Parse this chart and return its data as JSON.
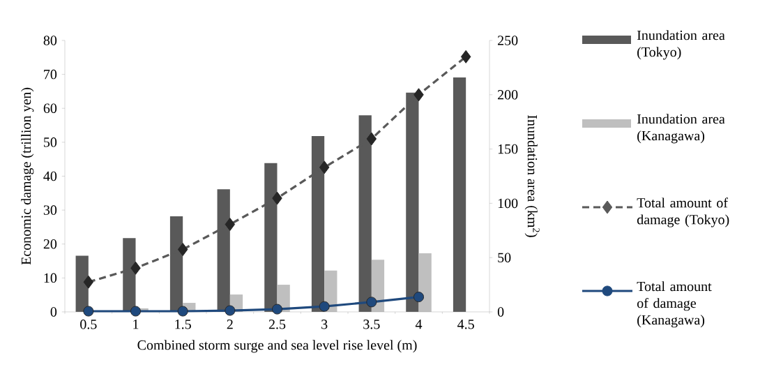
{
  "chart_data": {
    "type": "bar",
    "categories": [
      "0.5",
      "1",
      "1.5",
      "2",
      "2.5",
      "3",
      "3.5",
      "4",
      "4.5"
    ],
    "xlabel": "Combined storm surge and sea level rise level (m)",
    "ylabel": "Economic damage (trillion yen)",
    "y2label": "Inundation area (km$^{2}$)",
    "ylim": [
      0,
      80
    ],
    "yticks": [
      0,
      10,
      20,
      30,
      40,
      50,
      60,
      70,
      80
    ],
    "y2lim": [
      0,
      250
    ],
    "y2ticks": [
      0,
      50,
      100,
      150,
      200,
      250
    ],
    "legend": "right",
    "series": [
      {
        "name": "Inundation area (Tokyo)",
        "axis": "y2",
        "color": "#595959",
        "values": [
          51.7,
          68,
          88,
          113,
          137,
          162,
          181,
          202,
          216
        ]
      },
      {
        "name": "Inundation area (Kanagawa)",
        "axis": "y2",
        "color": "#bfbfbf",
        "values": [
          null,
          3.3,
          8.3,
          16,
          25,
          38,
          48,
          54,
          null
        ]
      },
      {
        "name": "Total amount of damage (Tokyo)",
        "type": "line",
        "color": "#595959",
        "marker": "diamond",
        "line_style": "dashed",
        "values": [
          8.8,
          12.9,
          18.4,
          25.8,
          33.5,
          42.6,
          51.0,
          64.0,
          75.2
        ]
      },
      {
        "name": "Total amount of damage (Kanagawa)",
        "type": "line",
        "color": "#1f497d",
        "marker": "circle",
        "line_style": "solid",
        "values": [
          0.2,
          0.2,
          0.2,
          0.4,
          0.8,
          1.6,
          2.9,
          4.4,
          null
        ]
      }
    ]
  }
}
